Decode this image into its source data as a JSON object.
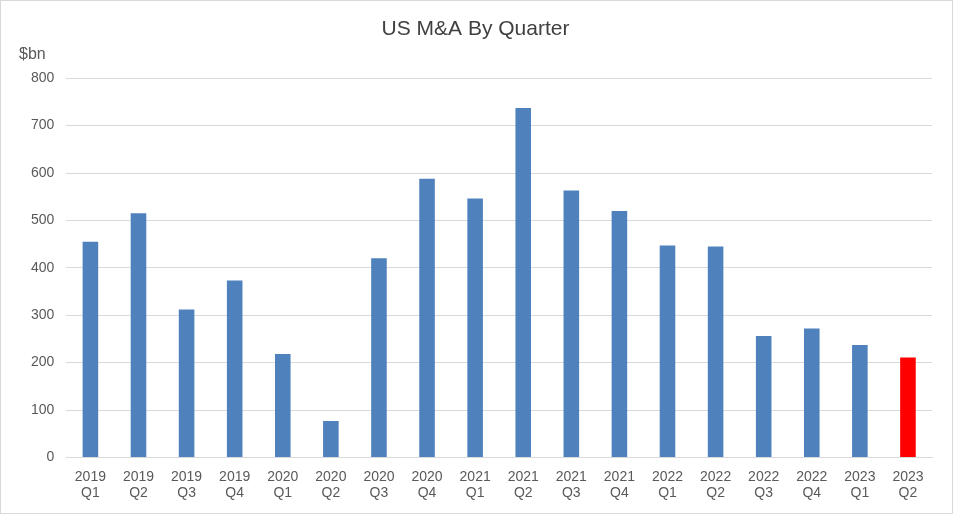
{
  "chart_data": {
    "type": "bar",
    "title": "US M&A By Quarter",
    "y_label": "$bn",
    "categories": [
      "2019 Q1",
      "2019 Q2",
      "2019 Q3",
      "2019 Q4",
      "2020 Q1",
      "2020 Q2",
      "2020 Q3",
      "2020 Q4",
      "2021 Q1",
      "2021 Q2",
      "2021 Q3",
      "2021 Q4",
      "2022 Q1",
      "2022 Q2",
      "2022 Q3",
      "2022 Q4",
      "2023 Q1",
      "2023 Q2"
    ],
    "values": [
      455,
      515,
      312,
      373,
      218,
      77,
      420,
      588,
      546,
      737,
      563,
      520,
      447,
      445,
      256,
      272,
      237,
      211
    ],
    "colors": [
      "#4f81bd",
      "#4f81bd",
      "#4f81bd",
      "#4f81bd",
      "#4f81bd",
      "#4f81bd",
      "#4f81bd",
      "#4f81bd",
      "#4f81bd",
      "#4f81bd",
      "#4f81bd",
      "#4f81bd",
      "#4f81bd",
      "#4f81bd",
      "#4f81bd",
      "#4f81bd",
      "#4f81bd",
      "#ff0000"
    ],
    "ylim": [
      0,
      800
    ],
    "yticks": [
      0,
      100,
      200,
      300,
      400,
      500,
      600,
      700,
      800
    ],
    "grid": true
  }
}
